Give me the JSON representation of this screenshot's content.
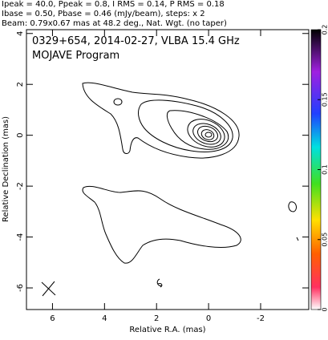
{
  "chart_data": {
    "type": "contour",
    "header": [
      "Ipeak = 40.0, Ppeak = 0.8, I RMS = 0.14, P RMS = 0.18",
      "Ibase = 0.50, Pbase = 0.46 (mJy/beam), steps: x 2",
      "Beam: 0.79x0.67 mas at 48.2 deg., Nat. Wgt. (no taper)"
    ],
    "title": "0329+654, 2014-02-27, VLBA 15.4 GHz",
    "subtitle": "MOJAVE Program",
    "xlabel": "Relative R.A. (mas)",
    "ylabel": "Relative Declination (mas)",
    "xlim": [
      7,
      -3.85
    ],
    "xticks": [
      6,
      4,
      2,
      0,
      -2
    ],
    "ylim": [
      -6.85,
      4.15
    ],
    "yticks": [
      -6,
      -4,
      -2,
      0,
      2,
      4
    ],
    "clim": [
      0,
      0.2
    ],
    "cticks": [
      0,
      0.05,
      0.1,
      0.15,
      0.2
    ]
  }
}
